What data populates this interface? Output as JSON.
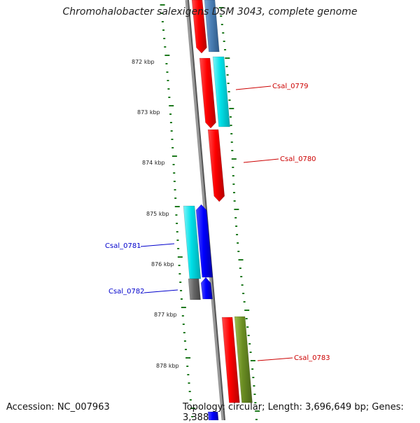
{
  "title": "Chromohalobacter salexigens DSM 3043, complete genome",
  "footer": {
    "accession": "Accession: NC_007963",
    "topology": "Topology: circular; Length: 3,696,649 bp; Genes: 3,388"
  },
  "ticks": [
    "872 kbp",
    "873 kbp",
    "874 kbp",
    "875 kbp",
    "876 kbp",
    "877 kbp",
    "878 kbp"
  ],
  "gene_labels": [
    "Csal_0779",
    "Csal_0780",
    "Csal_0781",
    "Csal_0782",
    "Csal_0783"
  ],
  "colors": {
    "backbone": "#777777",
    "dots": "#1f7a1f",
    "label_red": "#cc0000",
    "label_blue": "#0000cc",
    "red": "#ff0000",
    "cyan": "#00e0e8",
    "steelblue": "#4a7fb5",
    "blue": "#0000ff",
    "gray": "#666666",
    "olive": "#6b8e23"
  }
}
